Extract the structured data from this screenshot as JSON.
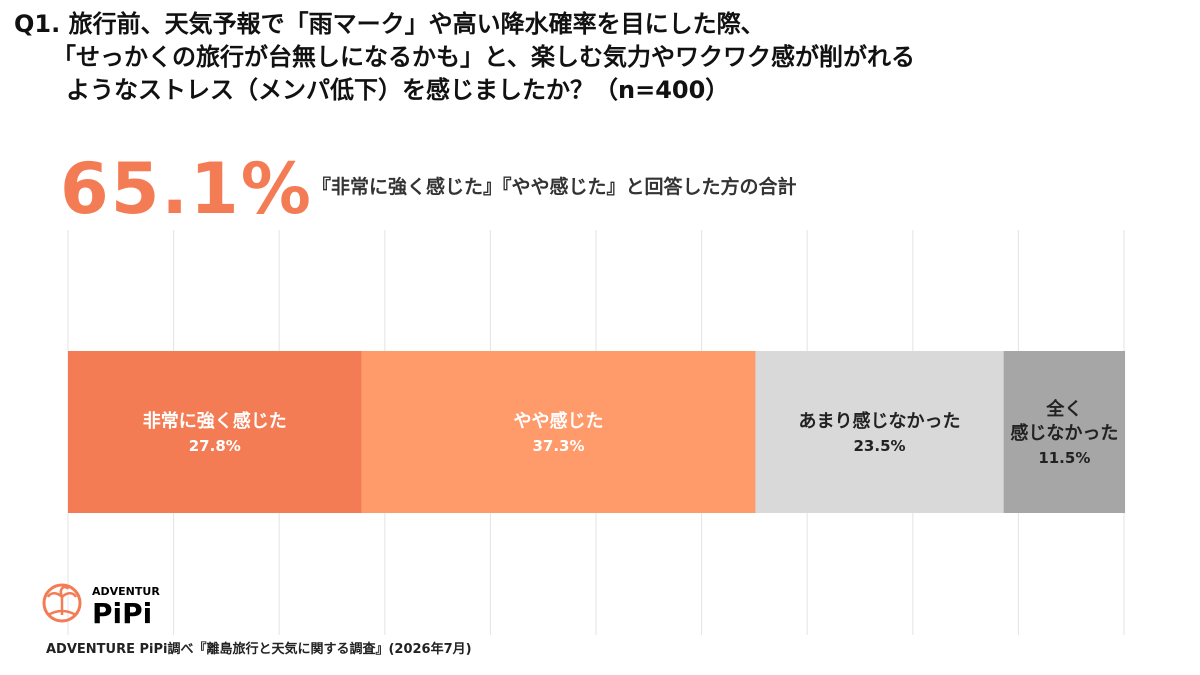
{
  "question": {
    "line1": "Q1. 旅行前、天気予報で「雨マーク」や高い降水確率を目にした際、",
    "line2": "「せっかくの旅行が台無しになるかも」と、楽しむ気力やワクワク感が削がれる",
    "line3": "ようなストレス（メンパ低下）を感じましたか？（n=400）"
  },
  "highlight": {
    "value": "65.1%",
    "caption": "『非常に強く感じた』『やや感じた』と回答した方の合計"
  },
  "chart_data": {
    "type": "bar",
    "orientation": "horizontal-stacked-100",
    "categories": [
      "非常に強く感じた",
      "やや感じた",
      "あまり感じなかった",
      "全く\n感じなかった"
    ],
    "values": [
      27.8,
      37.3,
      23.5,
      11.5
    ],
    "value_labels": [
      "27.8%",
      "37.3%",
      "23.5%",
      "11.5%"
    ],
    "colors": [
      "#f47c55",
      "#ff9a6a",
      "#d9d9d9",
      "#a6a6a6"
    ],
    "label_colors": [
      "#ffffff",
      "#ffffff",
      "#222222",
      "#222222"
    ],
    "xlim": [
      0,
      100
    ],
    "grid": true,
    "grid_step": 10
  },
  "logo": {
    "top": "ADVENTURE",
    "bottom": "PiPi"
  },
  "source": "ADVENTURE PiPi調べ『離島旅行と天気に関する調査』(2026年7月)"
}
